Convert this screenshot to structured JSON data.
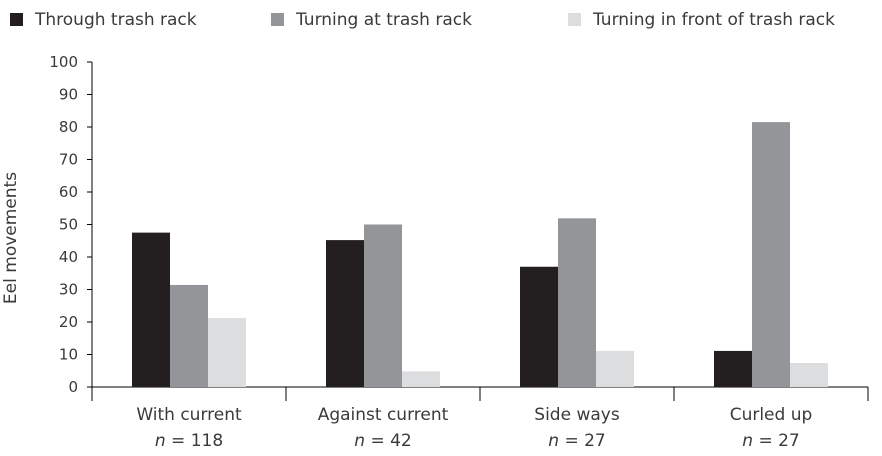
{
  "chart_data": {
    "type": "bar",
    "ylabel": "Eel movements",
    "xlabel": "",
    "ylim": [
      0,
      100
    ],
    "yticks": [
      0,
      10,
      20,
      30,
      40,
      50,
      60,
      70,
      80,
      90,
      100
    ],
    "grid": false,
    "legend_position": "top",
    "categories": [
      "With current",
      "Against current",
      "Side ways",
      "Curled up"
    ],
    "category_n": [
      {
        "prefix": "n",
        "text": " = 118"
      },
      {
        "prefix": "n",
        "text": " = 42"
      },
      {
        "prefix": "n",
        "text": " = 27"
      },
      {
        "prefix": "n",
        "text": " = 27"
      }
    ],
    "series": [
      {
        "name": "Through trash rack",
        "color": "#231f20",
        "values": [
          47.5,
          45.2,
          37.0,
          11.1
        ]
      },
      {
        "name": "Turning at trash rack",
        "color": "#939598",
        "values": [
          31.4,
          50.0,
          51.9,
          81.5
        ]
      },
      {
        "name": "Turning in front of trash rack",
        "color": "#dcddde",
        "values": [
          21.2,
          4.8,
          11.1,
          7.4
        ]
      }
    ]
  }
}
